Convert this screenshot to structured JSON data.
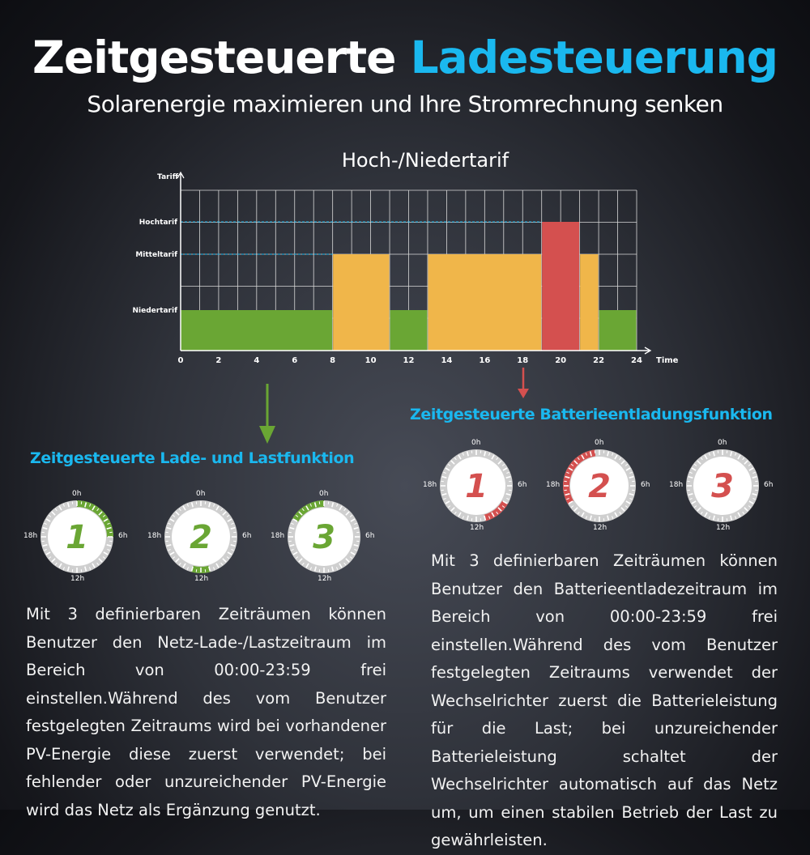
{
  "header": {
    "title_main": "Zeitgesteuerte",
    "title_accent": "Ladesteuerung",
    "subtitle": "Solarenergie maximieren und Ihre Stromrechnung senken"
  },
  "chart_data": {
    "type": "bar",
    "title": "Hoch-/Niedertarif",
    "ylabel": "Tariff",
    "xlabel": "Time",
    "xlim": [
      0,
      24
    ],
    "x_ticks": [
      "0",
      "2",
      "4",
      "6",
      "8",
      "10",
      "12",
      "14",
      "16",
      "18",
      "20",
      "22",
      "24"
    ],
    "y_levels": [
      "Niedertarif",
      "Mitteltarif",
      "Hochtarif"
    ],
    "grid": true,
    "segments": [
      {
        "start": 0,
        "end": 8,
        "level": "Niedertarif",
        "color": "#6aa634"
      },
      {
        "start": 8,
        "end": 11,
        "level": "Mitteltarif",
        "color": "#f0b64a"
      },
      {
        "start": 11,
        "end": 13,
        "level": "Niedertarif",
        "color": "#6aa634"
      },
      {
        "start": 13,
        "end": 19,
        "level": "Mitteltarif",
        "color": "#f0b64a"
      },
      {
        "start": 19,
        "end": 21,
        "level": "Hochtarif",
        "color": "#d4504f"
      },
      {
        "start": 21,
        "end": 22,
        "level": "Mitteltarif",
        "color": "#f0b64a"
      },
      {
        "start": 22,
        "end": 24,
        "level": "Niedertarif",
        "color": "#6aa634"
      }
    ]
  },
  "left": {
    "heading": "Zeitgesteuerte Lade- und Lastfunktion",
    "color": "#6aa634",
    "dials": [
      {
        "number": "1",
        "arc_start_h": 0,
        "arc_end_h": 6
      },
      {
        "number": "2",
        "arc_start_h": 11,
        "arc_end_h": 13
      },
      {
        "number": "3",
        "arc_start_h": 20,
        "arc_end_h": 24
      }
    ],
    "labels": {
      "top": "0h",
      "right": "6h",
      "bottom": "12h",
      "left": "18h"
    },
    "text": "Mit 3 definierbaren Zeiträumen können Benutzer den Netz-Lade-/Lastzeitraum im Bereich von 00:00-23:59 frei einstellen.Während des vom Benutzer festgelegten Zeitraums wird bei vorhandener PV-Energie diese zuerst verwendet; bei fehlender oder unzureichender PV-Energie wird das Netz als Ergänzung genutzt."
  },
  "right": {
    "heading": "Zeitgesteuerte Batterieentladungsfunktion",
    "color": "#d4504f",
    "dials": [
      {
        "number": "1",
        "arc_start_h": 8,
        "arc_end_h": 11
      },
      {
        "number": "2",
        "arc_start_h": 16,
        "arc_end_h": 23.5
      },
      {
        "number": "3",
        "arc_start_h": 0,
        "arc_end_h": 0
      }
    ],
    "labels": {
      "top": "0h",
      "right": "6h",
      "bottom": "12h",
      "left": "18h"
    },
    "text": "Mit 3 definierbaren Zeiträumen können Benutzer den Batterieentladezeitraum im Bereich von 00:00-23:59 frei einstellen.Während des vom Benutzer festgelegten Zeitraums verwendet der Wechselrichter zuerst die Batterieleistung für die Last; bei unzureichender Batterieleistung schaltet der Wechselrichter automatisch auf das Netz um, um einen stabilen Betrieb der Last zu gewährleisten."
  }
}
